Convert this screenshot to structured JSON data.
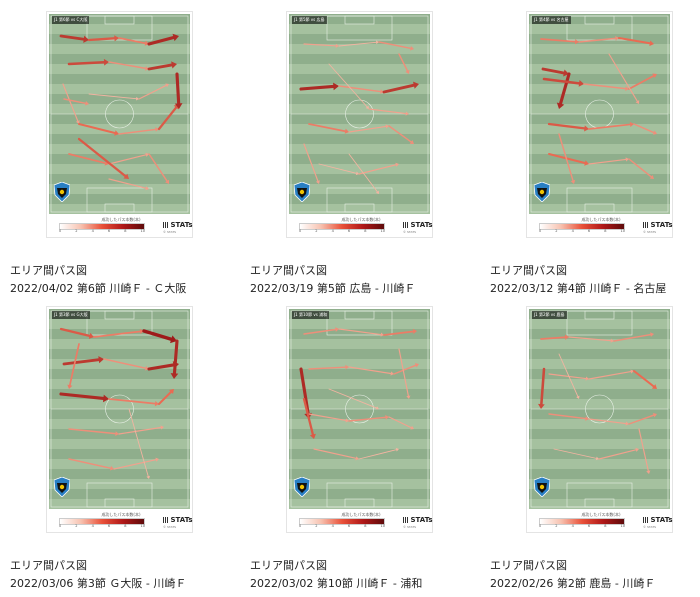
{
  "colors": {
    "arrow_light": "#f5c6b5",
    "arrow_mid": "#ea6a52",
    "arrow_dark": "#9e1a1a",
    "pitch_dark": "#8fae8c",
    "pitch_light": "#a5c19f"
  },
  "legend": {
    "title": "成功したパス本数(本)",
    "ticks": [
      "0",
      "2",
      "4",
      "6",
      "8",
      "10"
    ],
    "brand": "STATs",
    "brand_icon": "bar-chart-icon",
    "sub": "© STATS"
  },
  "cards": [
    {
      "tag": "J1 第6節 vs C大阪",
      "title": "エリア間パス図",
      "subtitle": "2022/04/02 第6節 川崎Ｆ - Ｃ大阪",
      "passes": [
        [
          12,
          22,
          40,
          26,
          8
        ],
        [
          40,
          26,
          70,
          24,
          6
        ],
        [
          70,
          24,
          100,
          30,
          4
        ],
        [
          100,
          30,
          130,
          22,
          9
        ],
        [
          20,
          50,
          60,
          48,
          7
        ],
        [
          60,
          48,
          100,
          55,
          3
        ],
        [
          100,
          55,
          128,
          50,
          8
        ],
        [
          14,
          70,
          30,
          110,
          2
        ],
        [
          30,
          110,
          70,
          120,
          5
        ],
        [
          70,
          120,
          110,
          115,
          3
        ],
        [
          110,
          115,
          130,
          90,
          6
        ],
        [
          20,
          140,
          60,
          150,
          4
        ],
        [
          60,
          150,
          100,
          140,
          2
        ],
        [
          100,
          140,
          120,
          170,
          3
        ],
        [
          40,
          80,
          90,
          85,
          1
        ],
        [
          90,
          85,
          120,
          70,
          2
        ],
        [
          30,
          125,
          80,
          165,
          6
        ],
        [
          15,
          85,
          40,
          90,
          3
        ],
        [
          128,
          60,
          130,
          95,
          9
        ],
        [
          60,
          165,
          100,
          175,
          2
        ]
      ]
    },
    {
      "tag": "J1 第5節 vs 広島",
      "title": "エリア間パス図",
      "subtitle": "2022/03/19 第5節 広島 - 川崎Ｆ",
      "passes": [
        [
          15,
          30,
          50,
          32,
          2
        ],
        [
          50,
          32,
          90,
          28,
          1
        ],
        [
          90,
          28,
          125,
          35,
          3
        ],
        [
          12,
          75,
          50,
          72,
          9
        ],
        [
          50,
          72,
          95,
          78,
          3
        ],
        [
          95,
          78,
          130,
          70,
          8
        ],
        [
          20,
          110,
          60,
          118,
          4
        ],
        [
          60,
          118,
          100,
          112,
          2
        ],
        [
          100,
          112,
          125,
          130,
          3
        ],
        [
          30,
          150,
          70,
          160,
          1
        ],
        [
          70,
          160,
          110,
          150,
          2
        ],
        [
          40,
          50,
          80,
          95,
          1
        ],
        [
          80,
          95,
          120,
          100,
          2
        ],
        [
          15,
          130,
          30,
          170,
          2
        ],
        [
          110,
          40,
          120,
          60,
          3
        ],
        [
          60,
          140,
          90,
          180,
          1
        ]
      ]
    },
    {
      "tag": "J1 第4節 vs 名古屋",
      "title": "エリア間パス図",
      "subtitle": "2022/03/12 第4節 川崎Ｆ - 名古屋",
      "passes": [
        [
          12,
          25,
          50,
          28,
          4
        ],
        [
          50,
          28,
          90,
          24,
          3
        ],
        [
          90,
          24,
          125,
          30,
          5
        ],
        [
          14,
          55,
          40,
          60,
          8
        ],
        [
          40,
          60,
          30,
          95,
          9
        ],
        [
          15,
          65,
          55,
          70,
          7
        ],
        [
          55,
          70,
          100,
          75,
          3
        ],
        [
          100,
          75,
          128,
          60,
          4
        ],
        [
          20,
          110,
          60,
          115,
          6
        ],
        [
          60,
          115,
          105,
          110,
          4
        ],
        [
          105,
          110,
          128,
          120,
          3
        ],
        [
          20,
          140,
          60,
          150,
          5
        ],
        [
          60,
          150,
          100,
          145,
          2
        ],
        [
          100,
          145,
          125,
          165,
          3
        ],
        [
          80,
          40,
          110,
          90,
          2
        ],
        [
          30,
          120,
          45,
          170,
          3
        ]
      ]
    },
    {
      "tag": "J1 第3節 vs G大阪",
      "title": "エリア間パス図",
      "subtitle": "2022/03/06 第3節 Ｇ大阪 - 川崎Ｆ",
      "passes": [
        [
          12,
          20,
          45,
          28,
          6
        ],
        [
          45,
          28,
          95,
          22,
          4
        ],
        [
          95,
          22,
          128,
          32,
          10
        ],
        [
          128,
          32,
          125,
          70,
          9
        ],
        [
          15,
          55,
          55,
          50,
          8
        ],
        [
          55,
          50,
          100,
          60,
          3
        ],
        [
          100,
          60,
          130,
          55,
          9
        ],
        [
          12,
          85,
          60,
          90,
          9
        ],
        [
          60,
          90,
          110,
          95,
          4
        ],
        [
          110,
          95,
          125,
          80,
          5
        ],
        [
          20,
          120,
          70,
          125,
          3
        ],
        [
          70,
          125,
          115,
          118,
          2
        ],
        [
          20,
          150,
          65,
          160,
          3
        ],
        [
          65,
          160,
          110,
          150,
          2
        ],
        [
          30,
          35,
          20,
          80,
          4
        ],
        [
          80,
          100,
          100,
          170,
          1
        ]
      ]
    },
    {
      "tag": "J1 第10節 vs 浦和",
      "title": "エリア間パス図",
      "subtitle": "2022/03/02 第10節 川崎Ｆ - 浦和",
      "passes": [
        [
          15,
          25,
          50,
          20,
          3
        ],
        [
          50,
          20,
          95,
          26,
          2
        ],
        [
          95,
          26,
          128,
          22,
          4
        ],
        [
          12,
          60,
          20,
          110,
          9
        ],
        [
          20,
          60,
          60,
          58,
          3
        ],
        [
          60,
          58,
          105,
          65,
          2
        ],
        [
          105,
          65,
          130,
          55,
          3
        ],
        [
          20,
          105,
          60,
          112,
          2
        ],
        [
          60,
          112,
          100,
          108,
          3
        ],
        [
          100,
          108,
          125,
          120,
          2
        ],
        [
          25,
          140,
          70,
          150,
          2
        ],
        [
          70,
          150,
          110,
          140,
          1
        ],
        [
          40,
          80,
          90,
          100,
          1
        ],
        [
          15,
          90,
          25,
          130,
          6
        ],
        [
          110,
          40,
          120,
          90,
          2
        ]
      ]
    },
    {
      "tag": "J1 第2節 vs 鹿島",
      "title": "エリア間パス図",
      "subtitle": "2022/02/26 第2節 鹿島 - 川崎Ｆ",
      "passes": [
        [
          12,
          30,
          40,
          28,
          4
        ],
        [
          40,
          28,
          85,
          32,
          2
        ],
        [
          85,
          32,
          125,
          25,
          3
        ],
        [
          15,
          60,
          12,
          100,
          7
        ],
        [
          20,
          65,
          60,
          70,
          2
        ],
        [
          60,
          70,
          105,
          62,
          2
        ],
        [
          105,
          62,
          128,
          80,
          5
        ],
        [
          20,
          105,
          60,
          110,
          3
        ],
        [
          60,
          110,
          100,
          115,
          2
        ],
        [
          100,
          115,
          128,
          105,
          3
        ],
        [
          25,
          140,
          70,
          150,
          1
        ],
        [
          70,
          150,
          110,
          140,
          2
        ],
        [
          30,
          45,
          50,
          90,
          1
        ],
        [
          110,
          120,
          120,
          165,
          2
        ]
      ]
    }
  ]
}
